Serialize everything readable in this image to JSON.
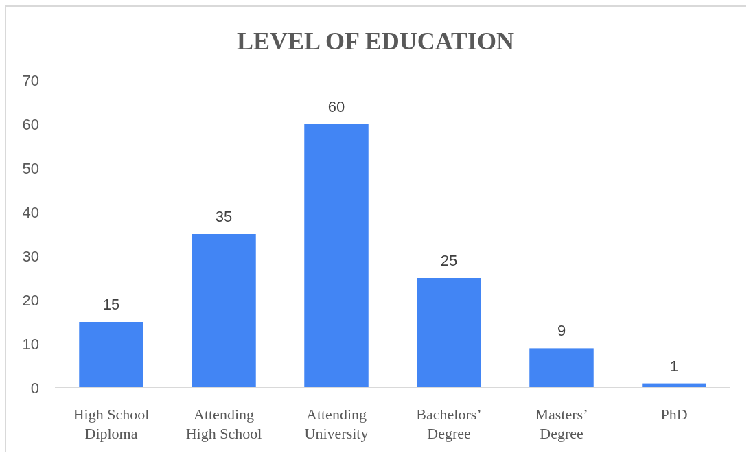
{
  "chart_data": {
    "type": "bar",
    "title": "LEVEL OF EDUCATION",
    "categories": [
      "High School Diploma",
      "Attending High School",
      "Attending University",
      "Bachelors’ Degree",
      "Masters’ Degree",
      "PhD"
    ],
    "values": [
      15,
      35,
      60,
      25,
      9,
      1
    ],
    "color": "#4285f4",
    "ylim": [
      0,
      70
    ],
    "yticks": [
      0,
      10,
      20,
      30,
      40,
      50,
      60,
      70
    ],
    "grid": false,
    "data_labels": true
  }
}
